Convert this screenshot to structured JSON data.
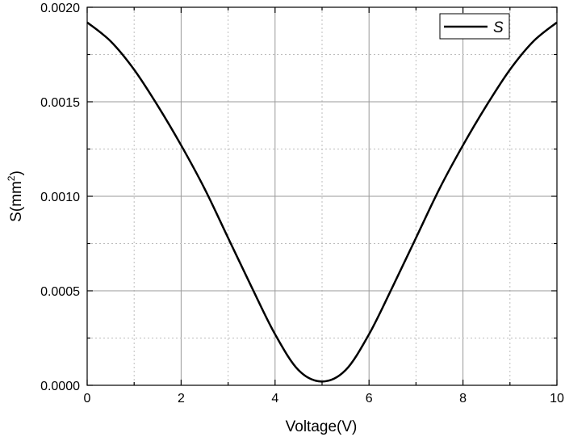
{
  "chart_data": {
    "type": "line",
    "xlabel": "Voltage(V)",
    "ylabel_main": "S(mm",
    "ylabel_sup": "2",
    "ylabel_close": ")",
    "xlim": [
      0,
      10
    ],
    "ylim": [
      0,
      0.002
    ],
    "x_ticks": [
      {
        "value": 0,
        "label": "0"
      },
      {
        "value": 2,
        "label": "2"
      },
      {
        "value": 4,
        "label": "4"
      },
      {
        "value": 6,
        "label": "6"
      },
      {
        "value": 8,
        "label": "8"
      },
      {
        "value": 10,
        "label": "10"
      }
    ],
    "y_ticks": [
      {
        "value": 0,
        "label": "0.0000"
      },
      {
        "value": 0.0005,
        "label": "0.0005"
      },
      {
        "value": 0.001,
        "label": "0.0010"
      },
      {
        "value": 0.0015,
        "label": "0.0015"
      },
      {
        "value": 0.002,
        "label": "0.0020"
      }
    ],
    "grid": true,
    "legend_position": "top-right",
    "series": [
      {
        "name": "S",
        "color": "#000000",
        "x": [
          0,
          0.5,
          1,
          1.5,
          2,
          2.5,
          3,
          3.5,
          4,
          4.5,
          5,
          5.5,
          6,
          6.5,
          7,
          7.5,
          8,
          8.5,
          9,
          9.5,
          10
        ],
        "y": [
          0.00192,
          0.00182,
          0.00167,
          0.00148,
          0.00127,
          0.00104,
          0.00078,
          0.00052,
          0.00027,
          8e-05,
          2e-05,
          8e-05,
          0.00027,
          0.00052,
          0.00078,
          0.00104,
          0.00127,
          0.00148,
          0.00167,
          0.00182,
          0.00192
        ]
      }
    ]
  }
}
